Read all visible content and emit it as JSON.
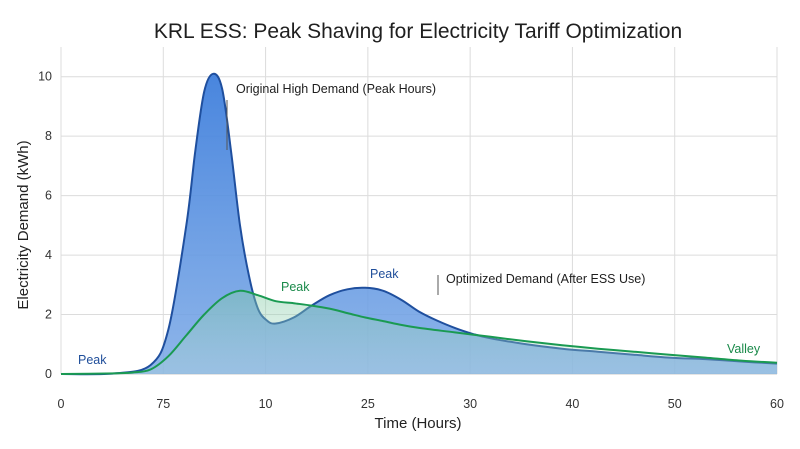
{
  "chart_data": {
    "type": "area",
    "title": "KRL ESS: Peak Shaving for Electricity Tariff Optimization",
    "xlabel": "Time (Hours)",
    "ylabel": "Electricity Demand (kWh)",
    "x_ticks": [
      "0",
      "75",
      "10",
      "25",
      "30",
      "40",
      "50",
      "60"
    ],
    "y_ticks": [
      "0",
      "2",
      "4",
      "6",
      "8",
      "10"
    ],
    "ylim": [
      0,
      11
    ],
    "grid": true,
    "series": [
      {
        "name": "Original High Demand (Peak Hours)",
        "color": "#4a86dc",
        "x": [
          0,
          3,
          5,
          6,
          7,
          7.5,
          8,
          8.5,
          9,
          9.5,
          10,
          10.5,
          11,
          11.5,
          12,
          13,
          14,
          15,
          16,
          17,
          18,
          19,
          20,
          21,
          22,
          23,
          24,
          26,
          28,
          30,
          32,
          34,
          36,
          38,
          40
        ],
        "values": [
          0,
          0.02,
          0.3,
          1.5,
          5.0,
          7.5,
          9.5,
          10.1,
          9.6,
          7.5,
          5.0,
          3.3,
          2.2,
          1.8,
          1.7,
          1.9,
          2.3,
          2.65,
          2.85,
          2.9,
          2.8,
          2.5,
          2.1,
          1.8,
          1.55,
          1.35,
          1.2,
          1.0,
          0.85,
          0.75,
          0.65,
          0.55,
          0.5,
          0.42,
          0.35
        ]
      },
      {
        "name": "Optimized Demand (After ESS Use)",
        "color": "#1a9a52",
        "x": [
          0,
          3,
          4,
          5,
          6,
          7,
          8,
          9,
          10,
          11,
          12,
          13,
          14,
          15,
          16,
          17,
          18,
          19,
          20,
          22,
          24,
          26,
          28,
          30,
          32,
          34,
          36,
          38,
          40
        ],
        "values": [
          0,
          0.02,
          0.05,
          0.15,
          0.6,
          1.3,
          2.0,
          2.55,
          2.8,
          2.65,
          2.45,
          2.38,
          2.3,
          2.2,
          2.05,
          1.9,
          1.78,
          1.65,
          1.55,
          1.4,
          1.25,
          1.1,
          0.97,
          0.85,
          0.75,
          0.65,
          0.55,
          0.45,
          0.38
        ]
      }
    ],
    "annotations": {
      "original": "Original High Demand (Peak Hours)",
      "optimized": "Optimized Demand (After ESS Use)",
      "peak_left": "Peak",
      "peak_green": "Peak",
      "peak_blue": "Peak",
      "valley": "Valley"
    }
  }
}
